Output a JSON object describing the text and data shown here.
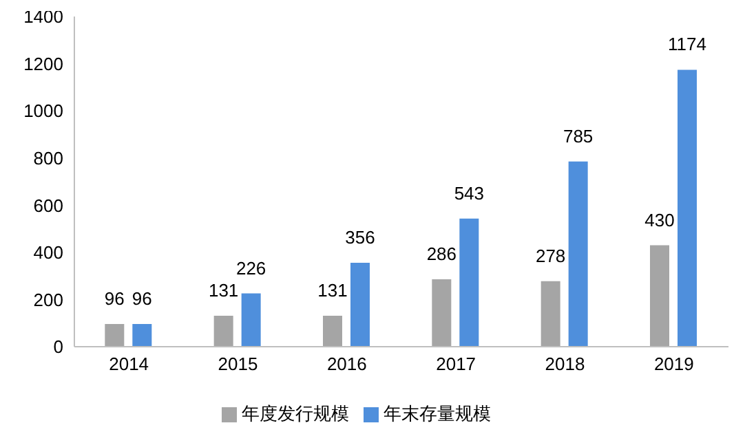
{
  "chart_data": {
    "type": "bar",
    "categories": [
      "2014",
      "2015",
      "2016",
      "2017",
      "2018",
      "2019"
    ],
    "series": [
      {
        "name": "年度发行规模",
        "color": "#a5a5a5",
        "values": [
          96,
          131,
          131,
          286,
          278,
          430
        ]
      },
      {
        "name": "年末存量规模",
        "color": "#4f8fdc",
        "values": [
          96,
          226,
          356,
          543,
          785,
          1174
        ]
      }
    ],
    "ylim": [
      0,
      1400
    ],
    "yticks": [
      0,
      200,
      400,
      600,
      800,
      1000,
      1200,
      1400
    ],
    "grid": false,
    "legend": "bottom",
    "data_labels": true
  }
}
